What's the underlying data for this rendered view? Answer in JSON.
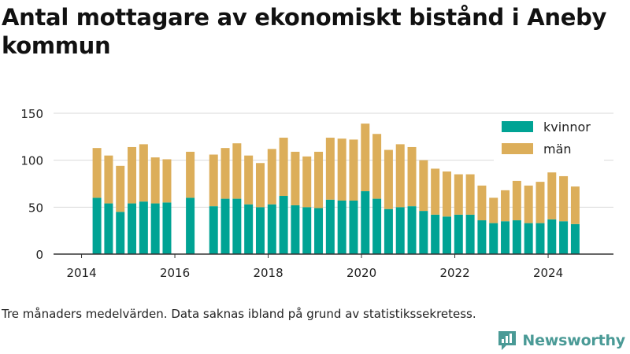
{
  "title": "Antal mottagare av ekonomiskt bistånd i Aneby kommun",
  "footnote": "Tre månaders medelvärden. Data saknas ibland på grund av statistikssekretess.",
  "brand": {
    "name": "Newsworthy",
    "color": "#4a9a96",
    "icon": "newsworthy-logo-icon"
  },
  "colors": {
    "kvinnor": "#00a394",
    "man": "#dcae5a",
    "axis": "#333333",
    "grid": "#d9d9d9"
  },
  "chart_data": {
    "type": "bar",
    "stacked": true,
    "x_unit": "year",
    "xlim": [
      2013.4,
      2025.4
    ],
    "ylim": [
      0,
      150
    ],
    "yticks": [
      "0",
      "50",
      "100",
      "150"
    ],
    "xticks": [
      "2014",
      "2016",
      "2018",
      "2020",
      "2022",
      "2024"
    ],
    "grid": "horizontal",
    "legend_position": "top-right",
    "series": [
      {
        "name": "kvinnor",
        "color": "#00a394"
      },
      {
        "name": "män",
        "color": "#dcae5a"
      }
    ],
    "points": [
      {
        "x": 2014.33,
        "kvinnor": 60,
        "man": 53
      },
      {
        "x": 2014.58,
        "kvinnor": 54,
        "man": 51
      },
      {
        "x": 2014.83,
        "kvinnor": 45,
        "man": 49
      },
      {
        "x": 2015.08,
        "kvinnor": 54,
        "man": 60
      },
      {
        "x": 2015.33,
        "kvinnor": 56,
        "man": 61
      },
      {
        "x": 2015.58,
        "kvinnor": 54,
        "man": 49
      },
      {
        "x": 2015.83,
        "kvinnor": 55,
        "man": 46
      },
      {
        "x": 2016.33,
        "kvinnor": 60,
        "man": 49
      },
      {
        "x": 2016.83,
        "kvinnor": 51,
        "man": 55
      },
      {
        "x": 2017.08,
        "kvinnor": 59,
        "man": 54
      },
      {
        "x": 2017.33,
        "kvinnor": 59,
        "man": 59
      },
      {
        "x": 2017.58,
        "kvinnor": 53,
        "man": 52
      },
      {
        "x": 2017.83,
        "kvinnor": 50,
        "man": 47
      },
      {
        "x": 2018.08,
        "kvinnor": 53,
        "man": 59
      },
      {
        "x": 2018.33,
        "kvinnor": 62,
        "man": 62
      },
      {
        "x": 2018.58,
        "kvinnor": 52,
        "man": 57
      },
      {
        "x": 2018.83,
        "kvinnor": 50,
        "man": 54
      },
      {
        "x": 2019.08,
        "kvinnor": 49,
        "man": 60
      },
      {
        "x": 2019.33,
        "kvinnor": 58,
        "man": 66
      },
      {
        "x": 2019.58,
        "kvinnor": 57,
        "man": 66
      },
      {
        "x": 2019.83,
        "kvinnor": 57,
        "man": 65
      },
      {
        "x": 2020.08,
        "kvinnor": 67,
        "man": 72
      },
      {
        "x": 2020.33,
        "kvinnor": 59,
        "man": 69
      },
      {
        "x": 2020.58,
        "kvinnor": 48,
        "man": 63
      },
      {
        "x": 2020.83,
        "kvinnor": 50,
        "man": 67
      },
      {
        "x": 2021.08,
        "kvinnor": 51,
        "man": 63
      },
      {
        "x": 2021.33,
        "kvinnor": 46,
        "man": 54
      },
      {
        "x": 2021.58,
        "kvinnor": 42,
        "man": 49
      },
      {
        "x": 2021.83,
        "kvinnor": 40,
        "man": 48
      },
      {
        "x": 2022.08,
        "kvinnor": 42,
        "man": 43
      },
      {
        "x": 2022.33,
        "kvinnor": 42,
        "man": 43
      },
      {
        "x": 2022.58,
        "kvinnor": 36,
        "man": 37
      },
      {
        "x": 2022.83,
        "kvinnor": 33,
        "man": 27
      },
      {
        "x": 2023.08,
        "kvinnor": 35,
        "man": 33
      },
      {
        "x": 2023.33,
        "kvinnor": 36,
        "man": 42
      },
      {
        "x": 2023.58,
        "kvinnor": 33,
        "man": 40
      },
      {
        "x": 2023.83,
        "kvinnor": 33,
        "man": 44
      },
      {
        "x": 2024.08,
        "kvinnor": 37,
        "man": 50
      },
      {
        "x": 2024.33,
        "kvinnor": 35,
        "man": 48
      },
      {
        "x": 2024.58,
        "kvinnor": 32,
        "man": 40
      }
    ]
  }
}
